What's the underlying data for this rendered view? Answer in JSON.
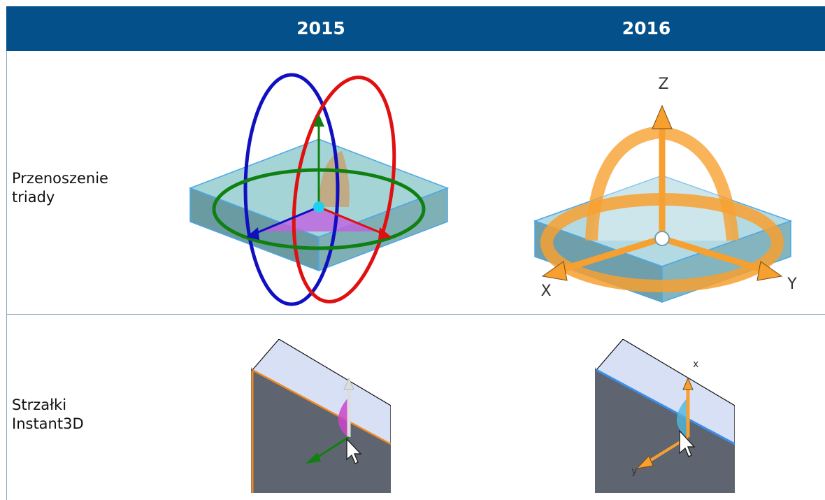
{
  "header": {
    "col1": "",
    "col2": "2015",
    "col3": "2016"
  },
  "rows": [
    {
      "label": "Przenoszenie\ntriady",
      "fig2016_axes": {
        "z": "Z",
        "x": "X",
        "y": "Y"
      }
    },
    {
      "label": "Strzałki\nInstant3D",
      "fig2016_axes": {
        "x": "x",
        "y": "y"
      }
    }
  ],
  "colors": {
    "header_bg": "#03508b",
    "grid_line": "#8aa6c2",
    "triad_orange": "#f7a030",
    "ring_red": "#e01010",
    "ring_blue": "#1010c0",
    "ring_green": "#108010"
  }
}
